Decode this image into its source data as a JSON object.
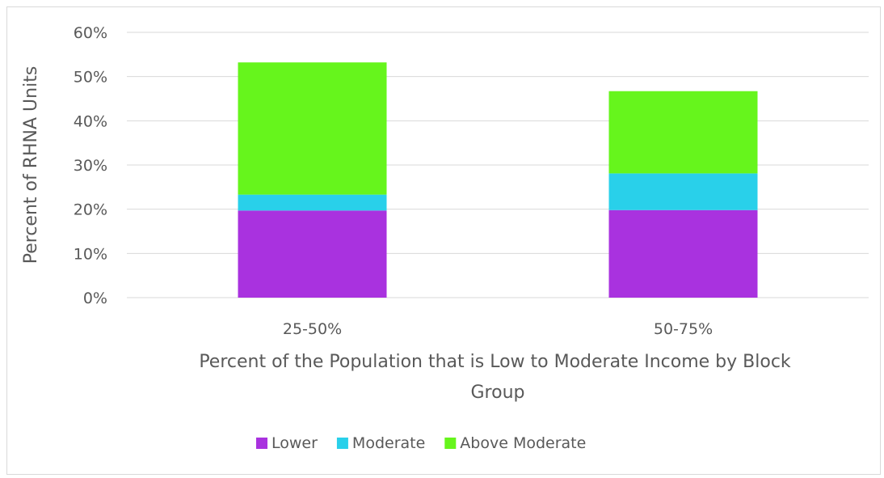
{
  "chart_data": {
    "type": "bar",
    "stacked": true,
    "categories": [
      "25-50%",
      "50-75%"
    ],
    "series": [
      {
        "name": "Lower",
        "color": "#a932df",
        "values": [
          19.7,
          19.8
        ]
      },
      {
        "name": "Moderate",
        "color": "#29d0ea",
        "values": [
          3.6,
          8.3
        ]
      },
      {
        "name": "Above Moderate",
        "color": "#66f51c",
        "values": [
          29.9,
          18.6
        ]
      }
    ],
    "title": "",
    "xlabel": "Percent of the Population that is Low to Moderate Income by Block Group",
    "xlabel_lines": [
      "Percent of the Population that is Low to Moderate Income by Block",
      "Group"
    ],
    "ylabel": "Percent of RHNA Units",
    "ylim": [
      0,
      60
    ],
    "yticks": [
      0,
      10,
      20,
      30,
      40,
      50,
      60
    ],
    "ytick_labels": [
      "0%",
      "10%",
      "20%",
      "30%",
      "40%",
      "50%",
      "60%"
    ],
    "grid": true,
    "legend_position": "bottom"
  }
}
